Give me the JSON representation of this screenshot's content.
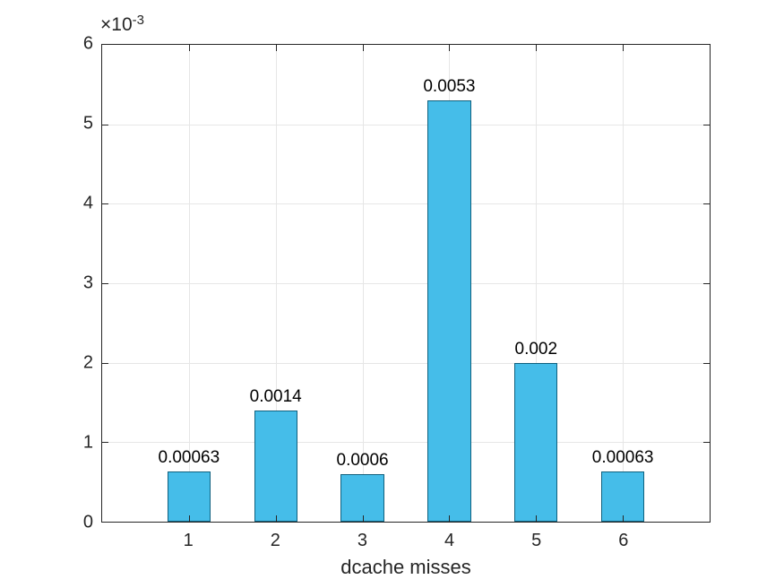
{
  "chart_data": {
    "type": "bar",
    "categories": [
      "1",
      "2",
      "3",
      "4",
      "5",
      "6"
    ],
    "values": [
      0.00063,
      0.0014,
      0.0006,
      0.0053,
      0.002,
      0.00063
    ],
    "bar_labels": [
      "0.00063",
      "0.0014",
      "0.0006",
      "0.0053",
      "0.002",
      "0.00063"
    ],
    "title": "",
    "xlabel": "dcache misses",
    "ylabel": "",
    "ylim": [
      0,
      0.006
    ],
    "yticks": [
      0,
      0.001,
      0.002,
      0.003,
      0.004,
      0.005,
      0.006
    ],
    "ytick_labels": [
      "0",
      "1",
      "2",
      "3",
      "4",
      "5",
      "6"
    ],
    "y_offset_text": "×10",
    "y_offset_exponent": "-3",
    "grid": true,
    "legend_position": "none",
    "bar_width_fraction": 0.5,
    "colors": {
      "bar_fill": "#45BDE9",
      "bar_edge": "#10617F",
      "grid": "#E6E6E6",
      "axis": "#262626",
      "tick_text": "#262626",
      "bar_label_text": "#000000",
      "background": "#FFFFFF"
    }
  }
}
